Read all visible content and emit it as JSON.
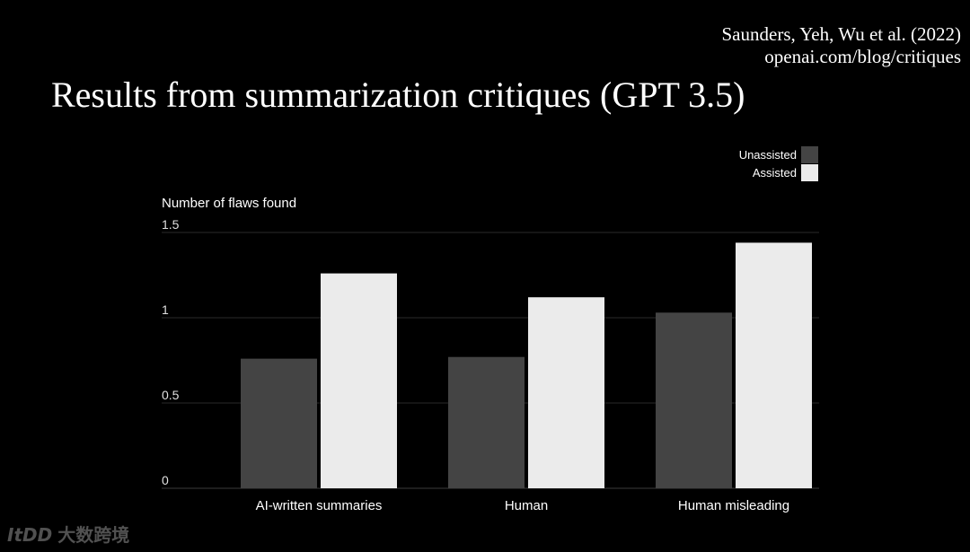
{
  "citation": {
    "line1": "Saunders, Yeh, Wu et al. (2022)",
    "line2": "openai.com/blog/critiques"
  },
  "title": "Results from summarization critiques (GPT 3.5)",
  "watermark": {
    "logo": "ItDD",
    "text": "大数跨境"
  },
  "chart_data": {
    "type": "bar",
    "ylabel": "Number of flaws found",
    "xlabel": "",
    "categories": [
      "AI-written summaries",
      "Human",
      "Human misleading"
    ],
    "series": [
      {
        "name": "Unassisted",
        "color": "#444444",
        "values": [
          0.76,
          0.77,
          1.03
        ]
      },
      {
        "name": "Assisted",
        "color": "#ebebeb",
        "values": [
          1.26,
          1.12,
          1.44
        ]
      }
    ],
    "ylim": [
      0,
      1.5
    ],
    "yticks": [
      0,
      0.5,
      1,
      1.5
    ],
    "ytick_labels": [
      "0",
      "0.5",
      "1",
      "1.5"
    ],
    "grid": true,
    "legend_position": "top-right"
  }
}
